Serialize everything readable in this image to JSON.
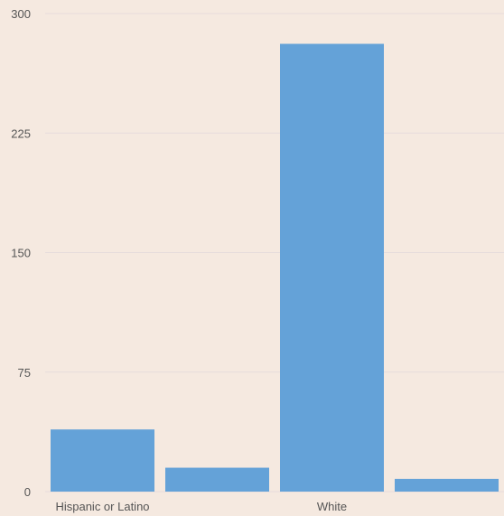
{
  "colors": {
    "background": "#f5e9e0",
    "bar": "#64a2d8",
    "grid": "#e6dcdc",
    "text": "#555555"
  },
  "chart_data": {
    "type": "bar",
    "categories": [
      "Hispanic or Latino",
      "",
      "White",
      ""
    ],
    "values": [
      39,
      15,
      281,
      8
    ],
    "title": "",
    "xlabel": "",
    "ylabel": "",
    "ylim": [
      0,
      300
    ],
    "yticks": [
      0,
      75,
      150,
      225,
      300
    ],
    "grid": true,
    "legend": "none"
  }
}
